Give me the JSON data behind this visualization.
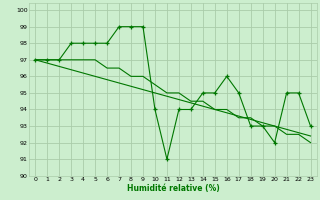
{
  "xlabel": "Humidité relative (%)",
  "bg_color": "#cceece",
  "grid_color": "#aaccaa",
  "line_color": "#007700",
  "xlim": [
    -0.5,
    23.5
  ],
  "ylim": [
    90,
    100.4
  ],
  "yticks": [
    90,
    91,
    92,
    93,
    94,
    95,
    96,
    97,
    98,
    99,
    100
  ],
  "xticks": [
    0,
    1,
    2,
    3,
    4,
    5,
    6,
    7,
    8,
    9,
    10,
    11,
    12,
    13,
    14,
    15,
    16,
    17,
    18,
    19,
    20,
    21,
    22,
    23
  ],
  "series_zigzag": [
    97,
    97,
    97,
    98,
    98,
    98,
    98,
    99,
    99,
    99,
    94,
    91,
    94,
    94,
    95,
    95,
    96,
    95,
    93,
    93,
    92,
    95,
    95,
    93
  ],
  "series_trend1": [
    97,
    97,
    97,
    97,
    97,
    97,
    96.5,
    96.5,
    96,
    96,
    95.5,
    95,
    95,
    94.5,
    94.5,
    94,
    94,
    93.5,
    93.5,
    93,
    93,
    92.5,
    92.5,
    92
  ],
  "series_trend2": [
    97,
    96.8,
    96.6,
    96.4,
    96.2,
    96.0,
    95.8,
    95.6,
    95.4,
    95.2,
    95.0,
    94.8,
    94.6,
    94.4,
    94.2,
    94.0,
    93.8,
    93.6,
    93.4,
    93.2,
    93.0,
    92.8,
    92.6,
    92.4
  ]
}
